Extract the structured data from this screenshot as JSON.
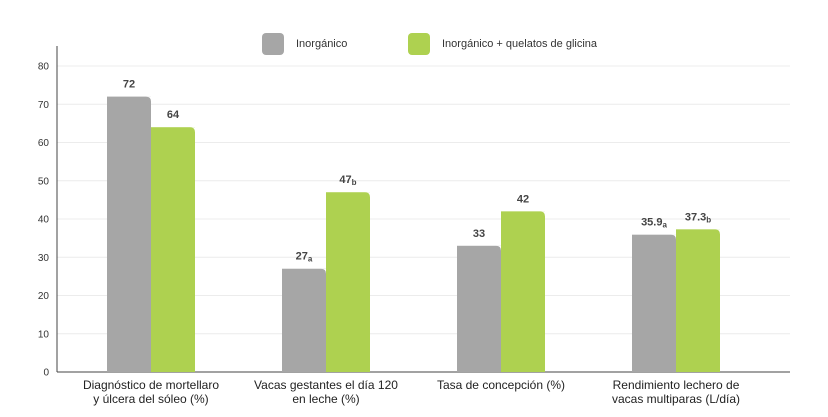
{
  "chart_data": {
    "type": "bar",
    "categories": [
      [
        "Diagnóstico de mortellaro",
        "y úlcera del sóleo (%)"
      ],
      [
        "Vacas gestantes el día 120",
        "en leche (%)"
      ],
      [
        "Tasa de concepción (%)"
      ],
      [
        "Rendimiento lechero de",
        "vacas multiparas (L/día)"
      ]
    ],
    "series": [
      {
        "name": "Inorgánico",
        "color": "#a6a6a6",
        "values": [
          72,
          27,
          33,
          35.9
        ],
        "labels": [
          "72",
          "27",
          "33",
          "35.9"
        ],
        "superscripts": [
          "",
          "a",
          "",
          "a"
        ]
      },
      {
        "name": "Inorgánico + quelatos de glicina",
        "color": "#aed150",
        "values": [
          64,
          47,
          42,
          37.3
        ],
        "labels": [
          "64",
          "47",
          "42",
          "37.3"
        ],
        "superscripts": [
          "",
          "b",
          "",
          "b"
        ]
      }
    ],
    "yticks": [
      "0",
      "10",
      "20",
      "30",
      "40",
      "50",
      "60",
      "70",
      "80"
    ],
    "ylim": [
      0,
      80
    ],
    "grid": true,
    "legend_placement": "top-center"
  }
}
